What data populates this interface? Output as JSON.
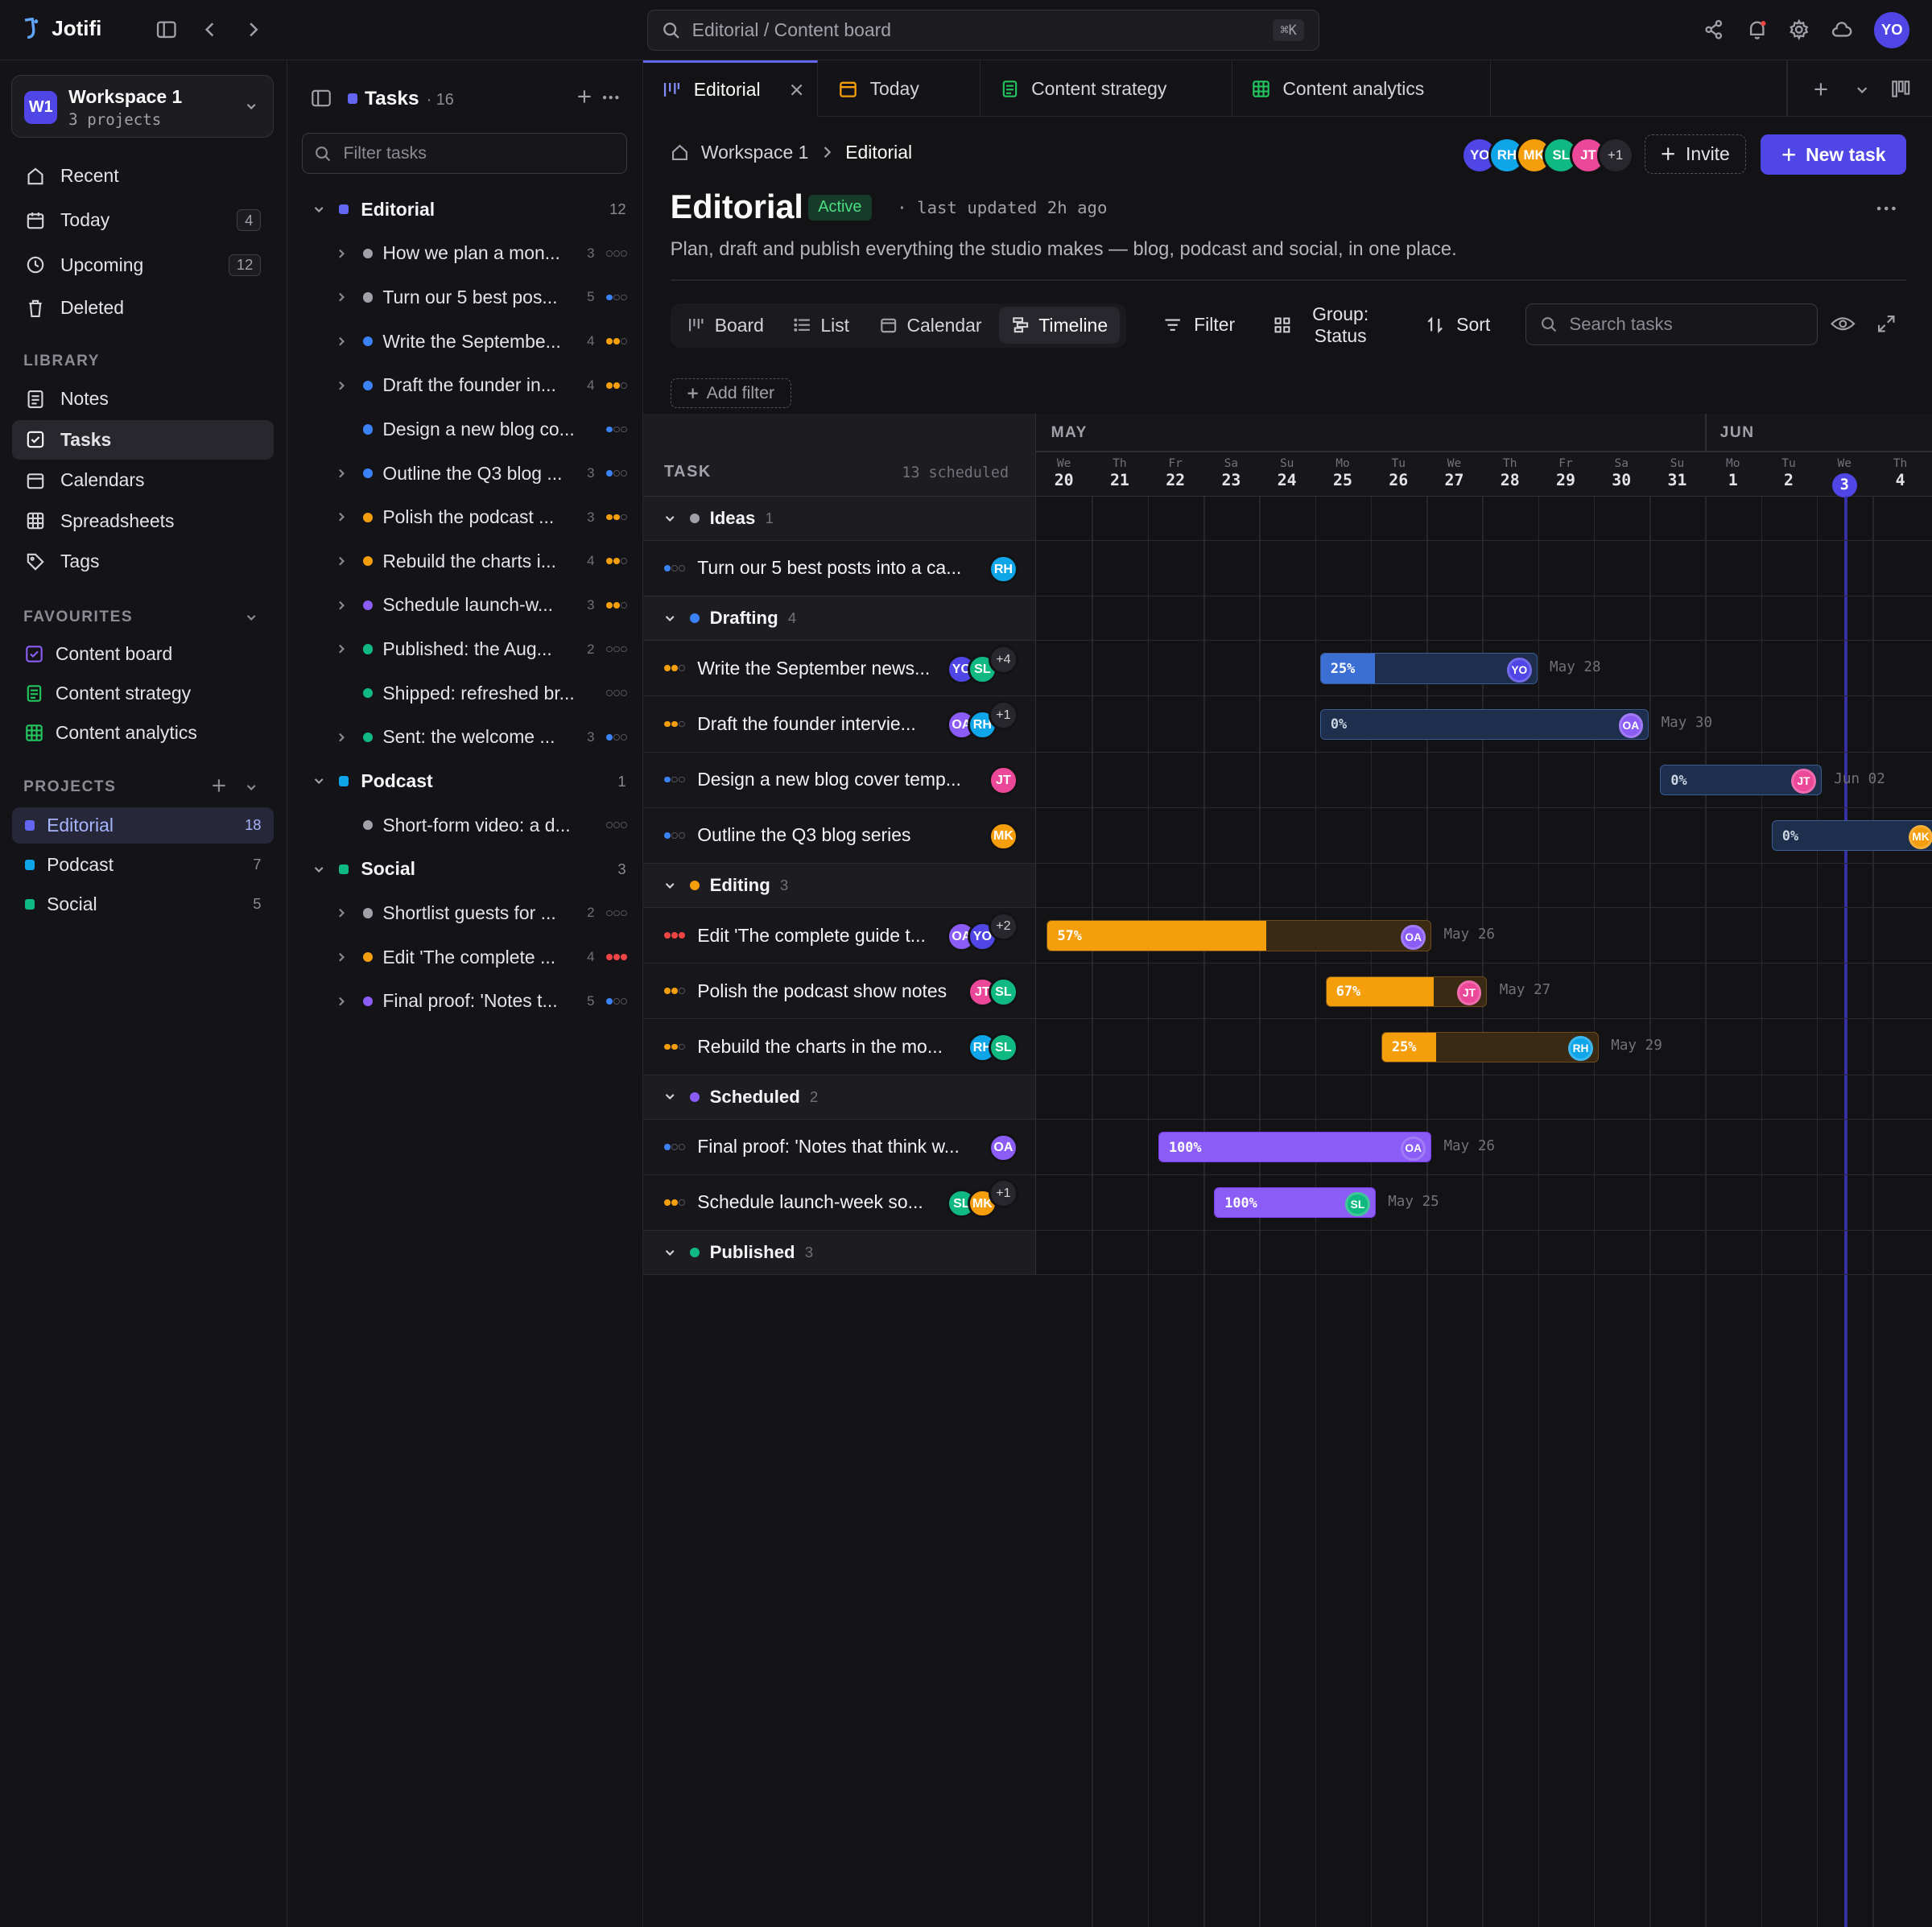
{
  "app": {
    "name": "Jotifi"
  },
  "search": {
    "placeholder": "Editorial / Content board",
    "shortcut": "⌘K"
  },
  "user": {
    "initials": "YO"
  },
  "workspace": {
    "name": "Workspace 1",
    "sub": "3 projects",
    "badge": "W1"
  },
  "nav": [
    {
      "label": "Recent",
      "icon": "clock-rotate-icon"
    },
    {
      "label": "Today",
      "icon": "calendar-icon",
      "count": "4"
    },
    {
      "label": "Upcoming",
      "icon": "clock-icon",
      "count": "12"
    },
    {
      "label": "Deleted",
      "icon": "trash-icon"
    }
  ],
  "library": {
    "heading": "LIBRARY",
    "items": [
      {
        "label": "Notes"
      },
      {
        "label": "Tasks"
      },
      {
        "label": "Calendars"
      },
      {
        "label": "Spreadsheets"
      },
      {
        "label": "Tags"
      }
    ]
  },
  "favourites": {
    "heading": "FAVOURITES",
    "items": [
      {
        "label": "Content board",
        "color": "#8b5cf6"
      },
      {
        "label": "Content strategy",
        "color": "#22c55e"
      },
      {
        "label": "Content analytics",
        "color": "#22c55e"
      }
    ]
  },
  "projects": {
    "heading": "PROJECTS",
    "items": [
      {
        "label": "Editorial",
        "count": "18",
        "color": "#6366f1"
      },
      {
        "label": "Podcast",
        "count": "7",
        "color": "#0ea5e9"
      },
      {
        "label": "Social",
        "count": "5",
        "color": "#10b981"
      }
    ]
  },
  "tasks_panel": {
    "title": "Tasks",
    "count": "16",
    "filter_placeholder": "Filter tasks",
    "groups": [
      {
        "name": "Editorial",
        "count": "12",
        "color": "#6366f1",
        "items": [
          {
            "text": "How we plan a mon...",
            "count": "3",
            "dot": "#a1a1aa",
            "pri": "#71717a",
            "chev": true
          },
          {
            "text": "Turn our 5 best pos...",
            "count": "5",
            "dot": "#a1a1aa",
            "pri": "#3b82f6",
            "chev": true
          },
          {
            "text": "Write the Septembe...",
            "count": "4",
            "dot": "#3b82f6",
            "pri": "#f59e0b",
            "chev": true
          },
          {
            "text": "Draft the founder in...",
            "count": "4",
            "dot": "#3b82f6",
            "pri": "#f59e0b",
            "chev": true
          },
          {
            "text": "Design a new blog co...",
            "count": "",
            "dot": "#3b82f6",
            "pri": "#3b82f6",
            "chev": false
          },
          {
            "text": "Outline the Q3 blog ...",
            "count": "3",
            "dot": "#3b82f6",
            "pri": "#3b82f6",
            "chev": true
          },
          {
            "text": "Polish the podcast ...",
            "count": "3",
            "dot": "#f59e0b",
            "pri": "#f59e0b",
            "chev": true
          },
          {
            "text": "Rebuild the charts i...",
            "count": "4",
            "dot": "#f59e0b",
            "pri": "#f59e0b",
            "chev": true
          },
          {
            "text": "Schedule launch-w...",
            "count": "3",
            "dot": "#8b5cf6",
            "pri": "#f59e0b",
            "chev": true
          },
          {
            "text": "Published: the Aug...",
            "count": "2",
            "dot": "#10b981",
            "pri": "#71717a",
            "chev": true
          },
          {
            "text": "Shipped: refreshed br...",
            "count": "",
            "dot": "#10b981",
            "pri": "#71717a",
            "chev": false
          },
          {
            "text": "Sent: the welcome ...",
            "count": "3",
            "dot": "#10b981",
            "pri": "#3b82f6",
            "chev": true
          }
        ]
      },
      {
        "name": "Podcast",
        "count": "1",
        "color": "#0ea5e9",
        "items": [
          {
            "text": "Short-form video: a d...",
            "count": "",
            "dot": "#a1a1aa",
            "pri": "#71717a",
            "chev": false
          }
        ]
      },
      {
        "name": "Social",
        "count": "3",
        "color": "#10b981",
        "items": [
          {
            "text": "Shortlist guests for ...",
            "count": "2",
            "dot": "#a1a1aa",
            "pri": "#71717a",
            "chev": true
          },
          {
            "text": "Edit 'The complete ...",
            "count": "4",
            "dot": "#f59e0b",
            "pri": "#ef4444",
            "chev": true
          },
          {
            "text": "Final proof: 'Notes t...",
            "count": "5",
            "dot": "#8b5cf6",
            "pri": "#3b82f6",
            "chev": true
          }
        ]
      }
    ]
  },
  "tabs": [
    {
      "label": "Editorial",
      "icon": "board-icon",
      "color": "#818cf8"
    },
    {
      "label": "Today",
      "icon": "calendar-icon",
      "color": "#f59e0b"
    },
    {
      "label": "Content strategy",
      "icon": "doc-icon",
      "color": "#22c55e"
    },
    {
      "label": "Content analytics",
      "icon": "sheet-icon",
      "color": "#22c55e"
    }
  ],
  "breadcrumb": [
    "Workspace 1",
    "Editorial"
  ],
  "header_avatars": [
    {
      "i": "YO",
      "c": "#4f46e5"
    },
    {
      "i": "RH",
      "c": "#0ea5e9"
    },
    {
      "i": "MK",
      "c": "#f59e0b"
    },
    {
      "i": "SL",
      "c": "#10b981"
    },
    {
      "i": "JT",
      "c": "#ec4899"
    }
  ],
  "header_more": "+1",
  "invite_label": "Invite",
  "new_task_label": "New task",
  "page": {
    "title": "Editorial",
    "status": "Active",
    "updated": "· last updated 2h ago",
    "description": "Plan, draft and publish everything the studio makes — blog, podcast and social, in one place."
  },
  "views": [
    "Board",
    "List",
    "Calendar",
    "Timeline"
  ],
  "toolbar": {
    "filter": "Filter",
    "group_line1": "Group:",
    "group_line2": "Status",
    "sort": "Sort",
    "search_placeholder": "Search tasks",
    "add_filter": "Add filter"
  },
  "timeline": {
    "task_heading": "TASK",
    "scheduled": "13 scheduled",
    "months": [
      {
        "label": "MAY",
        "day_index": 0
      },
      {
        "label": "JUN",
        "day_index": 12
      }
    ],
    "days": [
      {
        "n": "We",
        "d": "20"
      },
      {
        "n": "Th",
        "d": "21"
      },
      {
        "n": "Fr",
        "d": "22"
      },
      {
        "n": "Sa",
        "d": "23"
      },
      {
        "n": "Su",
        "d": "24"
      },
      {
        "n": "Mo",
        "d": "25"
      },
      {
        "n": "Tu",
        "d": "26"
      },
      {
        "n": "We",
        "d": "27"
      },
      {
        "n": "Th",
        "d": "28"
      },
      {
        "n": "Fr",
        "d": "29"
      },
      {
        "n": "Sa",
        "d": "30"
      },
      {
        "n": "Su",
        "d": "31"
      },
      {
        "n": "Mo",
        "d": "1"
      },
      {
        "n": "Tu",
        "d": "2"
      },
      {
        "n": "We",
        "d": "3"
      },
      {
        "n": "Th",
        "d": "4"
      }
    ],
    "today_index": 14,
    "rows": [
      {
        "type": "group",
        "name": "Ideas",
        "count": "1",
        "color": "#a1a1aa"
      },
      {
        "type": "task",
        "title": "Turn our 5 best posts into a ca...",
        "pri": "#3b82f6",
        "avatars": [
          {
            "i": "RH",
            "c": "#0ea5e9"
          }
        ]
      },
      {
        "type": "group",
        "name": "Drafting",
        "count": "4",
        "color": "#3b82f6"
      },
      {
        "type": "task",
        "title": "Write the September news...",
        "pri": "#f59e0b",
        "avatars": [
          {
            "i": "YO",
            "c": "#4f46e5"
          },
          {
            "i": "SL",
            "c": "#10b981"
          }
        ],
        "more": "+4",
        "bar": {
          "start": 5,
          "days": 3.9,
          "progress": 25,
          "kind": "blue",
          "owner": {
            "i": "YO",
            "c": "#4f46e5"
          },
          "due": "May 28"
        }
      },
      {
        "type": "task",
        "title": "Draft the founder intervie...",
        "pri": "#f59e0b",
        "avatars": [
          {
            "i": "OA",
            "c": "#8b5cf6"
          },
          {
            "i": "RH",
            "c": "#0ea5e9"
          }
        ],
        "more": "+1",
        "bar": {
          "start": 5,
          "days": 5.9,
          "progress": 0,
          "kind": "blue",
          "owner": {
            "i": "OA",
            "c": "#8b5cf6"
          },
          "due": "May 30"
        }
      },
      {
        "type": "task",
        "title": "Design a new blog cover temp...",
        "pri": "#3b82f6",
        "avatars": [
          {
            "i": "JT",
            "c": "#ec4899"
          }
        ],
        "bar": {
          "start": 11.1,
          "days": 2.9,
          "progress": 0,
          "kind": "blue",
          "owner": {
            "i": "JT",
            "c": "#ec4899"
          },
          "due": "Jun 02"
        }
      },
      {
        "type": "task",
        "title": "Outline the Q3 blog series",
        "pri": "#3b82f6",
        "avatars": [
          {
            "i": "MK",
            "c": "#f59e0b"
          }
        ],
        "bar": {
          "start": 13.1,
          "days": 3,
          "progress": 0,
          "kind": "blue",
          "owner": {
            "i": "MK",
            "c": "#f59e0b"
          },
          "due": ""
        }
      },
      {
        "type": "group",
        "name": "Editing",
        "count": "3",
        "color": "#f59e0b"
      },
      {
        "type": "task",
        "title": "Edit 'The complete guide t...",
        "pri": "#ef4444",
        "avatars": [
          {
            "i": "OA",
            "c": "#8b5cf6"
          },
          {
            "i": "YO",
            "c": "#4f46e5"
          }
        ],
        "more": "+2",
        "bar": {
          "start": 0.1,
          "days": 6.9,
          "progress": 57,
          "kind": "amber",
          "owner": {
            "i": "OA",
            "c": "#8b5cf6"
          },
          "due": "May 26"
        }
      },
      {
        "type": "task",
        "title": "Polish the podcast show notes",
        "pri": "#f59e0b",
        "avatars": [
          {
            "i": "JT",
            "c": "#ec4899"
          },
          {
            "i": "SL",
            "c": "#10b981"
          }
        ],
        "bar": {
          "start": 5.1,
          "days": 2.9,
          "progress": 67,
          "kind": "amber",
          "owner": {
            "i": "JT",
            "c": "#ec4899"
          },
          "due": "May 27"
        }
      },
      {
        "type": "task",
        "title": "Rebuild the charts in the mo...",
        "pri": "#f59e0b",
        "avatars": [
          {
            "i": "RH",
            "c": "#0ea5e9"
          },
          {
            "i": "SL",
            "c": "#10b981"
          }
        ],
        "bar": {
          "start": 6.1,
          "days": 3.9,
          "progress": 25,
          "kind": "amber",
          "owner": {
            "i": "RH",
            "c": "#0ea5e9"
          },
          "due": "May 29"
        }
      },
      {
        "type": "group",
        "name": "Scheduled",
        "count": "2",
        "color": "#8b5cf6"
      },
      {
        "type": "task",
        "title": "Final proof: 'Notes that think w...",
        "pri": "#3b82f6",
        "avatars": [
          {
            "i": "OA",
            "c": "#8b5cf6"
          }
        ],
        "bar": {
          "start": 2.1,
          "days": 4.9,
          "progress": 100,
          "kind": "violet",
          "owner": {
            "i": "OA",
            "c": "#8b5cf6"
          },
          "due": "May 26"
        }
      },
      {
        "type": "task",
        "title": "Schedule launch-week so...",
        "pri": "#f59e0b",
        "avatars": [
          {
            "i": "SL",
            "c": "#10b981"
          },
          {
            "i": "MK",
            "c": "#f59e0b"
          }
        ],
        "more": "+1",
        "bar": {
          "start": 3.1,
          "days": 2.9,
          "progress": 100,
          "kind": "violet",
          "owner": {
            "i": "SL",
            "c": "#10b981"
          },
          "due": "May 25"
        }
      },
      {
        "type": "group",
        "name": "Published",
        "count": "3",
        "color": "#10b981"
      }
    ]
  }
}
